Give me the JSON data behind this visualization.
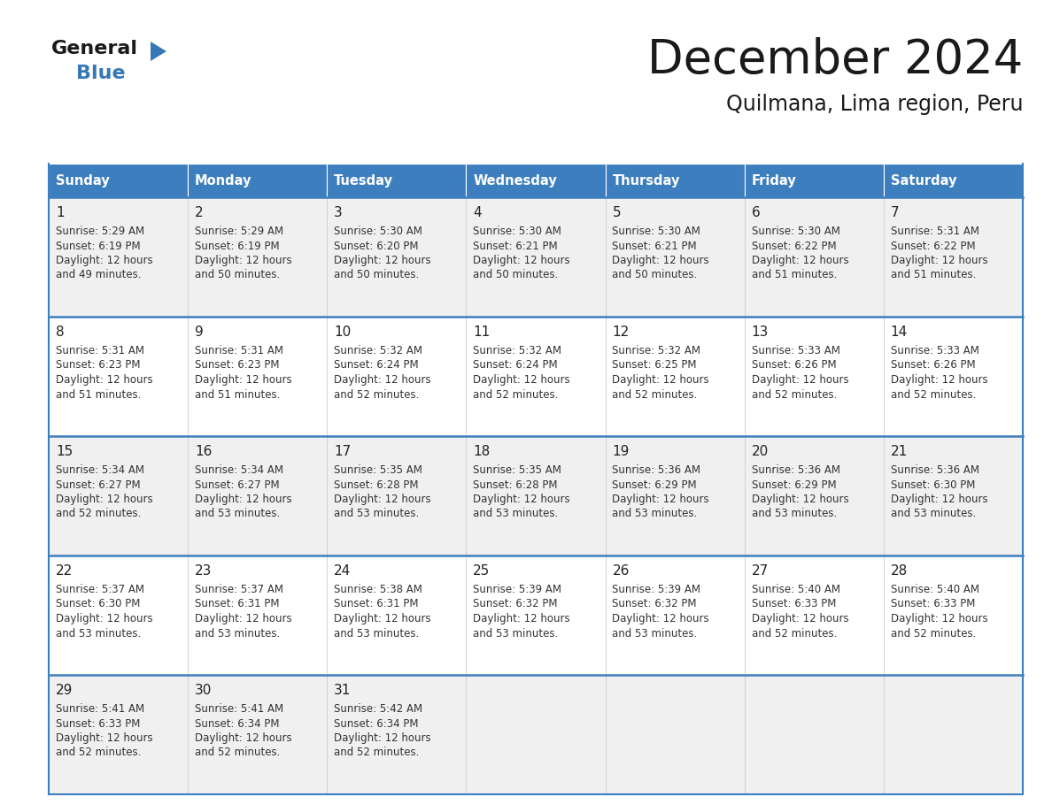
{
  "title": "December 2024",
  "subtitle": "Quilmana, Lima region, Peru",
  "header_color": "#3d7ebf",
  "header_text_color": "#ffffff",
  "cell_bg_odd": "#f0f0f0",
  "cell_bg_even": "#ffffff",
  "text_color": "#333333",
  "days_of_week": [
    "Sunday",
    "Monday",
    "Tuesday",
    "Wednesday",
    "Thursday",
    "Friday",
    "Saturday"
  ],
  "weeks": [
    [
      {
        "day": 1,
        "sunrise": "5:29 AM",
        "sunset": "6:19 PM",
        "daylight_hours": 12,
        "daylight_minutes": 49
      },
      {
        "day": 2,
        "sunrise": "5:29 AM",
        "sunset": "6:19 PM",
        "daylight_hours": 12,
        "daylight_minutes": 50
      },
      {
        "day": 3,
        "sunrise": "5:30 AM",
        "sunset": "6:20 PM",
        "daylight_hours": 12,
        "daylight_minutes": 50
      },
      {
        "day": 4,
        "sunrise": "5:30 AM",
        "sunset": "6:21 PM",
        "daylight_hours": 12,
        "daylight_minutes": 50
      },
      {
        "day": 5,
        "sunrise": "5:30 AM",
        "sunset": "6:21 PM",
        "daylight_hours": 12,
        "daylight_minutes": 50
      },
      {
        "day": 6,
        "sunrise": "5:30 AM",
        "sunset": "6:22 PM",
        "daylight_hours": 12,
        "daylight_minutes": 51
      },
      {
        "day": 7,
        "sunrise": "5:31 AM",
        "sunset": "6:22 PM",
        "daylight_hours": 12,
        "daylight_minutes": 51
      }
    ],
    [
      {
        "day": 8,
        "sunrise": "5:31 AM",
        "sunset": "6:23 PM",
        "daylight_hours": 12,
        "daylight_minutes": 51
      },
      {
        "day": 9,
        "sunrise": "5:31 AM",
        "sunset": "6:23 PM",
        "daylight_hours": 12,
        "daylight_minutes": 51
      },
      {
        "day": 10,
        "sunrise": "5:32 AM",
        "sunset": "6:24 PM",
        "daylight_hours": 12,
        "daylight_minutes": 52
      },
      {
        "day": 11,
        "sunrise": "5:32 AM",
        "sunset": "6:24 PM",
        "daylight_hours": 12,
        "daylight_minutes": 52
      },
      {
        "day": 12,
        "sunrise": "5:32 AM",
        "sunset": "6:25 PM",
        "daylight_hours": 12,
        "daylight_minutes": 52
      },
      {
        "day": 13,
        "sunrise": "5:33 AM",
        "sunset": "6:26 PM",
        "daylight_hours": 12,
        "daylight_minutes": 52
      },
      {
        "day": 14,
        "sunrise": "5:33 AM",
        "sunset": "6:26 PM",
        "daylight_hours": 12,
        "daylight_minutes": 52
      }
    ],
    [
      {
        "day": 15,
        "sunrise": "5:34 AM",
        "sunset": "6:27 PM",
        "daylight_hours": 12,
        "daylight_minutes": 52
      },
      {
        "day": 16,
        "sunrise": "5:34 AM",
        "sunset": "6:27 PM",
        "daylight_hours": 12,
        "daylight_minutes": 53
      },
      {
        "day": 17,
        "sunrise": "5:35 AM",
        "sunset": "6:28 PM",
        "daylight_hours": 12,
        "daylight_minutes": 53
      },
      {
        "day": 18,
        "sunrise": "5:35 AM",
        "sunset": "6:28 PM",
        "daylight_hours": 12,
        "daylight_minutes": 53
      },
      {
        "day": 19,
        "sunrise": "5:36 AM",
        "sunset": "6:29 PM",
        "daylight_hours": 12,
        "daylight_minutes": 53
      },
      {
        "day": 20,
        "sunrise": "5:36 AM",
        "sunset": "6:29 PM",
        "daylight_hours": 12,
        "daylight_minutes": 53
      },
      {
        "day": 21,
        "sunrise": "5:36 AM",
        "sunset": "6:30 PM",
        "daylight_hours": 12,
        "daylight_minutes": 53
      }
    ],
    [
      {
        "day": 22,
        "sunrise": "5:37 AM",
        "sunset": "6:30 PM",
        "daylight_hours": 12,
        "daylight_minutes": 53
      },
      {
        "day": 23,
        "sunrise": "5:37 AM",
        "sunset": "6:31 PM",
        "daylight_hours": 12,
        "daylight_minutes": 53
      },
      {
        "day": 24,
        "sunrise": "5:38 AM",
        "sunset": "6:31 PM",
        "daylight_hours": 12,
        "daylight_minutes": 53
      },
      {
        "day": 25,
        "sunrise": "5:39 AM",
        "sunset": "6:32 PM",
        "daylight_hours": 12,
        "daylight_minutes": 53
      },
      {
        "day": 26,
        "sunrise": "5:39 AM",
        "sunset": "6:32 PM",
        "daylight_hours": 12,
        "daylight_minutes": 53
      },
      {
        "day": 27,
        "sunrise": "5:40 AM",
        "sunset": "6:33 PM",
        "daylight_hours": 12,
        "daylight_minutes": 52
      },
      {
        "day": 28,
        "sunrise": "5:40 AM",
        "sunset": "6:33 PM",
        "daylight_hours": 12,
        "daylight_minutes": 52
      }
    ],
    [
      {
        "day": 29,
        "sunrise": "5:41 AM",
        "sunset": "6:33 PM",
        "daylight_hours": 12,
        "daylight_minutes": 52
      },
      {
        "day": 30,
        "sunrise": "5:41 AM",
        "sunset": "6:34 PM",
        "daylight_hours": 12,
        "daylight_minutes": 52
      },
      {
        "day": 31,
        "sunrise": "5:42 AM",
        "sunset": "6:34 PM",
        "daylight_hours": 12,
        "daylight_minutes": 52
      },
      null,
      null,
      null,
      null
    ]
  ],
  "logo_text_general": "General",
  "logo_text_blue": "Blue",
  "logo_color_general": "#1a1a1a",
  "logo_color_blue": "#3578b5"
}
